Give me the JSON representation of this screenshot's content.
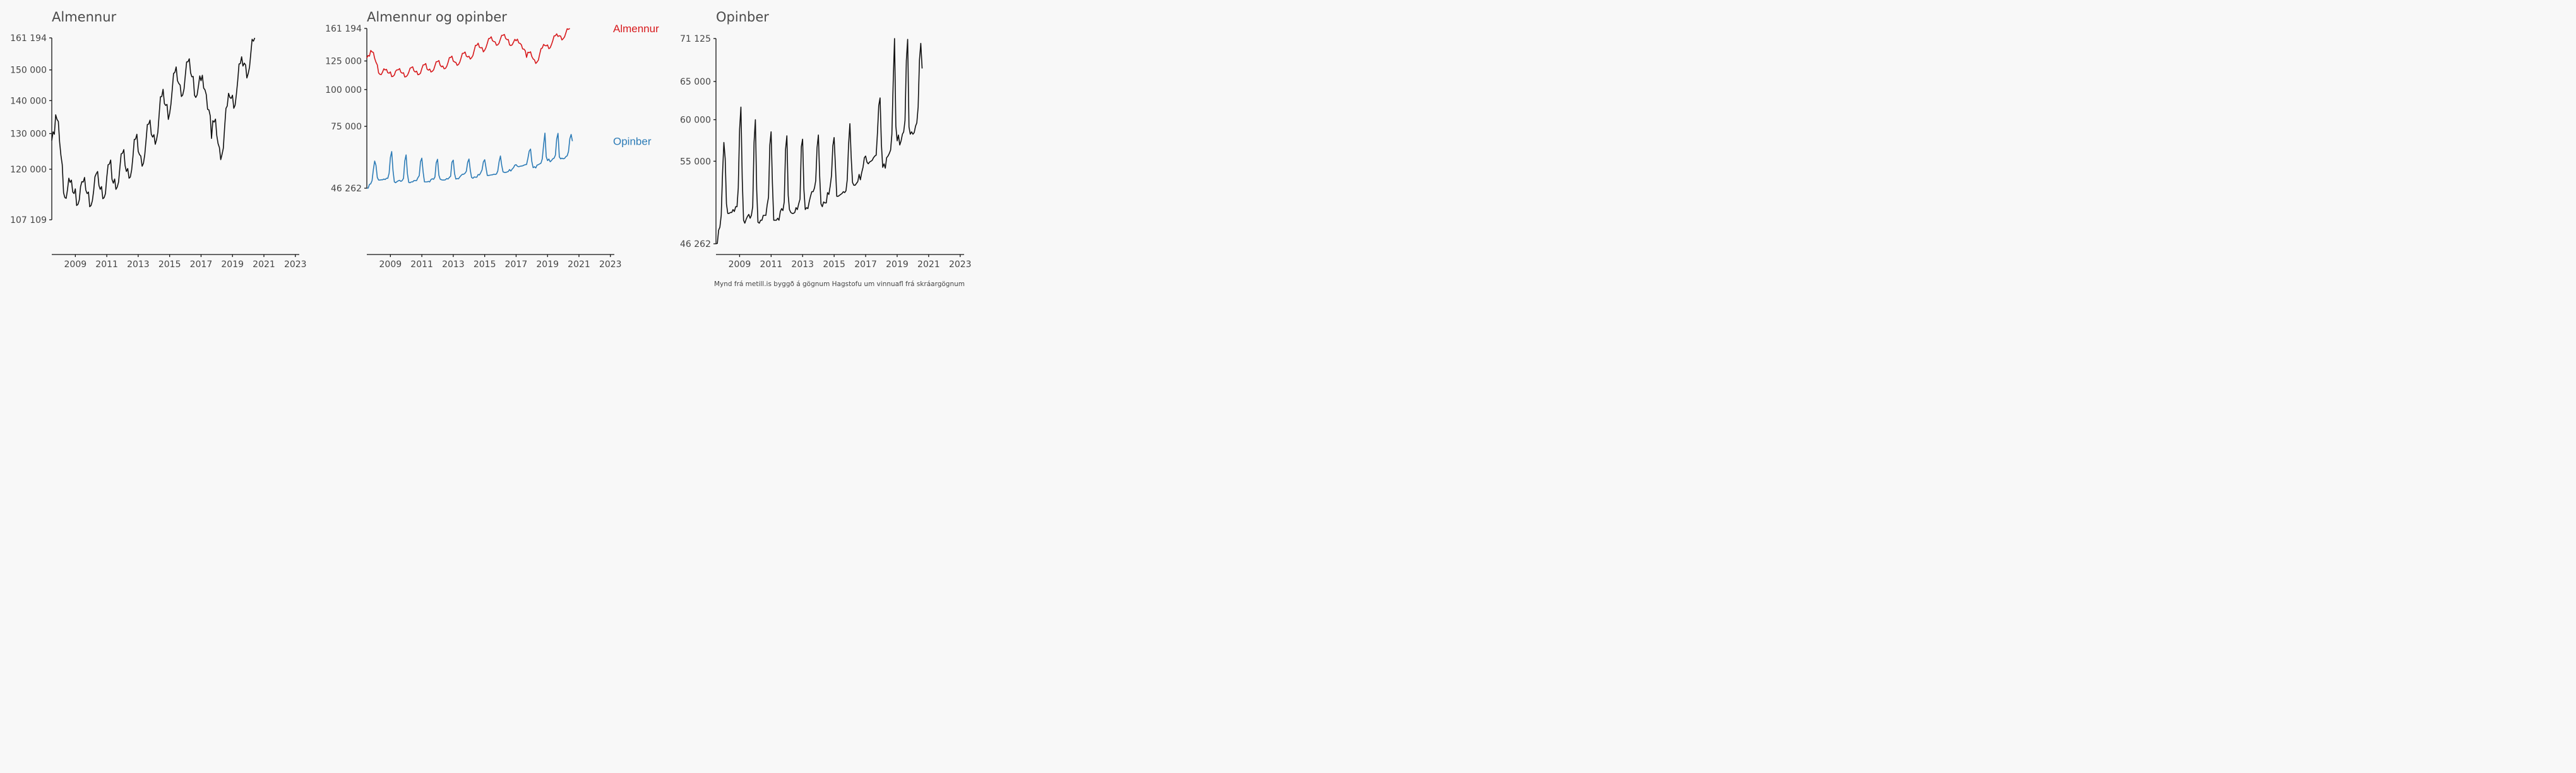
{
  "caption": "Mynd frá metill.is byggð á gögnum Hagstofu um vinnuafl frá skráargögnum",
  "colors": {
    "almennur": "#d7191c",
    "opinber": "#2c7bb6",
    "single": "#111111",
    "axis": "#111111",
    "background": "#f8f8f8"
  },
  "chart_data": [
    {
      "type": "line",
      "title": "Almennur",
      "x_ticks": [
        2009,
        2011,
        2013,
        2015,
        2017,
        2019,
        2021,
        2023
      ],
      "y_ticks": [
        107109,
        120000,
        130000,
        140000,
        150000,
        161194
      ],
      "y_tick_labels": [
        "107 109",
        "120 000",
        "130 000",
        "140 000",
        "150 000",
        "161 194"
      ],
      "log_y": true,
      "series": [
        {
          "x_start": 2008.0,
          "x_step": 0.0833333,
          "values": [
            128000,
            130500,
            129800,
            135600,
            134200,
            133600,
            127600,
            123800,
            121200,
            113800,
            112600,
            112400,
            114600,
            117600,
            116500,
            117100,
            114000,
            113600,
            114800,
            110600,
            110900,
            112000,
            115400,
            116700,
            116600,
            117800,
            114500,
            113600,
            114000,
            110300,
            110600,
            111800,
            114400,
            118000,
            118800,
            119400,
            115700,
            114700,
            115400,
            112300,
            112600,
            113600,
            117800,
            121200,
            121400,
            122500,
            117300,
            116300,
            117400,
            114700,
            115300,
            116600,
            120500,
            124200,
            124400,
            125400,
            121000,
            119400,
            120200,
            117600,
            117900,
            119800,
            123500,
            128300,
            128400,
            129800,
            124900,
            124000,
            123600,
            120800,
            121600,
            124000,
            128000,
            132700,
            132800,
            134000,
            129800,
            129000,
            129700,
            126900,
            128200,
            130400,
            135800,
            141200,
            141300,
            143600,
            139100,
            138500,
            138800,
            134200,
            136000,
            138800,
            143500,
            148800,
            149200,
            151000,
            146400,
            145500,
            145000,
            141300,
            141800,
            143700,
            148400,
            152700,
            152800,
            153800,
            149000,
            147700,
            147800,
            141700,
            141000,
            141800,
            144700,
            148000,
            146400,
            148200,
            144000,
            143400,
            141900,
            137300,
            137100,
            135300,
            128600,
            133800,
            133400,
            134300,
            129500,
            127100,
            126000,
            122600,
            124000,
            125800,
            131900,
            137600,
            138300,
            142300,
            141000,
            140700,
            141700,
            137600,
            138600,
            142000,
            146400,
            152000,
            152200,
            154500,
            151300,
            152300,
            151700,
            147300,
            148800,
            150900,
            155800,
            160700,
            160000,
            161194
          ]
        }
      ]
    },
    {
      "type": "line",
      "title": "Almennur og opinber",
      "x_ticks": [
        2009,
        2011,
        2013,
        2015,
        2017,
        2019,
        2021,
        2023
      ],
      "y_ticks": [
        46262,
        75000,
        100000,
        125000,
        161194
      ],
      "y_tick_labels": [
        "46 262",
        "75 000",
        "100 000",
        "125 000",
        "161 194"
      ],
      "log_y": true,
      "series": [
        {
          "name": "Almennur",
          "x_start": 2008.0,
          "x_step": 0.0833333,
          "values": [
            128000,
            130500,
            129800,
            135600,
            134200,
            133600,
            127600,
            123800,
            121200,
            113800,
            112600,
            112400,
            114600,
            117600,
            116500,
            117100,
            114000,
            113600,
            114800,
            110600,
            110900,
            112000,
            115400,
            116700,
            116600,
            117800,
            114500,
            113600,
            114000,
            110300,
            110600,
            111800,
            114400,
            118000,
            118800,
            119400,
            115700,
            114700,
            115400,
            112300,
            112600,
            113600,
            117800,
            121200,
            121400,
            122500,
            117300,
            116300,
            117400,
            114700,
            115300,
            116600,
            120500,
            124200,
            124400,
            125400,
            121000,
            119400,
            120200,
            117600,
            117900,
            119800,
            123500,
            128300,
            128400,
            129800,
            124900,
            124000,
            123600,
            120800,
            121600,
            124000,
            128000,
            132700,
            132800,
            134000,
            129800,
            129000,
            129700,
            126900,
            128200,
            130400,
            135800,
            141200,
            141300,
            143600,
            139100,
            138500,
            138800,
            134200,
            136000,
            138800,
            143500,
            148800,
            149200,
            151000,
            146400,
            145500,
            145000,
            141300,
            141800,
            143700,
            148400,
            152700,
            152800,
            153800,
            149000,
            147700,
            147800,
            141700,
            141000,
            141800,
            144700,
            148000,
            146400,
            148200,
            144000,
            143400,
            141900,
            137300,
            137100,
            135300,
            128600,
            133800,
            133400,
            134300,
            129500,
            127100,
            126000,
            122600,
            124000,
            125800,
            131900,
            137600,
            138300,
            142300,
            141000,
            140700,
            141700,
            137600,
            138600,
            142000,
            146400,
            152000,
            152200,
            154500,
            151300,
            152300,
            151700,
            147300,
            148800,
            150900,
            155800,
            160700,
            160000,
            161194
          ]
        },
        {
          "name": "Opinber",
          "x_start": 2008.0,
          "x_step": 0.0833333,
          "values": [
            46262,
            46300,
            47600,
            47900,
            49100,
            53600,
            57200,
            55300,
            50300,
            49300,
            49300,
            49400,
            49400,
            49700,
            49500,
            50000,
            50000,
            52000,
            58800,
            61600,
            53000,
            48600,
            48300,
            48700,
            49000,
            49200,
            48800,
            49100,
            50000,
            57200,
            60000,
            51800,
            48400,
            48300,
            48600,
            48600,
            49100,
            49100,
            49100,
            50200,
            51000,
            56900,
            58500,
            52500,
            48600,
            48600,
            48600,
            48800,
            48600,
            49500,
            49800,
            49600,
            50500,
            56400,
            58000,
            51200,
            49700,
            49400,
            49300,
            49300,
            49400,
            49900,
            49700,
            50300,
            50800,
            56700,
            57600,
            51800,
            49700,
            49900,
            49800,
            50500,
            51100,
            51600,
            51600,
            52000,
            52800,
            56600,
            58100,
            53200,
            50300,
            50000,
            50500,
            50400,
            50400,
            51500,
            51300,
            52200,
            53400,
            56800,
            57800,
            54400,
            51100,
            51100,
            51200,
            51300,
            51400,
            51600,
            51500,
            51700,
            52900,
            56900,
            59500,
            55400,
            52600,
            52300,
            52300,
            52500,
            52700,
            53500,
            52900,
            53700,
            54300,
            55400,
            55600,
            54900,
            54700,
            54900,
            55000,
            55100,
            55400,
            55600,
            55700,
            58400,
            61800,
            62800,
            57000,
            54300,
            54700,
            54200,
            55400,
            55600,
            55900,
            56300,
            58200,
            64900,
            71125,
            59200,
            57400,
            58100,
            56900,
            57400,
            58200,
            58500,
            59900,
            67900,
            71000,
            59100,
            58200,
            58500,
            58200,
            58400,
            59200,
            59600,
            61600,
            68000,
            70400,
            66800
          ]
        }
      ]
    },
    {
      "type": "line",
      "title": "Opinber",
      "x_ticks": [
        2009,
        2011,
        2013,
        2015,
        2017,
        2019,
        2021,
        2023
      ],
      "y_ticks": [
        46262,
        55000,
        60000,
        65000,
        71125
      ],
      "y_tick_labels": [
        "46 262",
        "55 000",
        "60 000",
        "65 000",
        "71 125"
      ],
      "log_y": true,
      "series": [
        {
          "x_start": 2008.0,
          "x_step": 0.0833333,
          "values": [
            46262,
            46300,
            47600,
            47900,
            49100,
            53600,
            57200,
            55300,
            50300,
            49300,
            49300,
            49400,
            49400,
            49700,
            49500,
            50000,
            50000,
            52000,
            58800,
            61600,
            53000,
            48600,
            48300,
            48700,
            49000,
            49200,
            48800,
            49100,
            50000,
            57200,
            60000,
            51800,
            48400,
            48300,
            48600,
            48600,
            49100,
            49100,
            49100,
            50200,
            51000,
            56900,
            58500,
            52500,
            48600,
            48600,
            48600,
            48800,
            48600,
            49500,
            49800,
            49600,
            50500,
            56400,
            58000,
            51200,
            49700,
            49400,
            49300,
            49300,
            49400,
            49900,
            49700,
            50300,
            50800,
            56700,
            57600,
            51800,
            49700,
            49900,
            49800,
            50500,
            51100,
            51600,
            51600,
            52000,
            52800,
            56600,
            58100,
            53200,
            50300,
            50000,
            50500,
            50400,
            50400,
            51500,
            51300,
            52200,
            53400,
            56800,
            57800,
            54400,
            51100,
            51100,
            51200,
            51300,
            51400,
            51600,
            51500,
            51700,
            52900,
            56900,
            59500,
            55400,
            52600,
            52300,
            52300,
            52500,
            52700,
            53500,
            52900,
            53700,
            54300,
            55400,
            55600,
            54900,
            54700,
            54900,
            55000,
            55100,
            55400,
            55600,
            55700,
            58400,
            61800,
            62800,
            57000,
            54300,
            54700,
            54200,
            55400,
            55600,
            55900,
            56300,
            58200,
            64900,
            71125,
            59200,
            57400,
            58100,
            56900,
            57400,
            58200,
            58500,
            59900,
            67900,
            71000,
            59100,
            58200,
            58500,
            58200,
            58400,
            59200,
            59600,
            61600,
            68000,
            70400,
            66800
          ]
        }
      ]
    }
  ]
}
